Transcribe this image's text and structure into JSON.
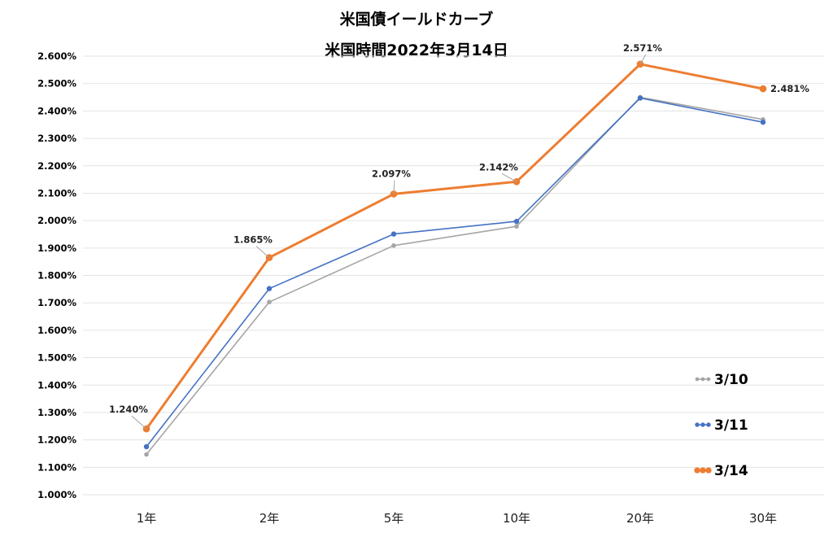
{
  "chart_data": {
    "type": "line",
    "title": "米国債イールドカーブ",
    "subtitle": "米国時間2022年3月14日",
    "categories": [
      "1年",
      "2年",
      "5年",
      "10年",
      "20年",
      "30年"
    ],
    "ylim": [
      1.0,
      2.6
    ],
    "yticks": [
      "1.000%",
      "1.100%",
      "1.200%",
      "1.300%",
      "1.400%",
      "1.500%",
      "1.600%",
      "1.700%",
      "1.800%",
      "1.900%",
      "2.000%",
      "2.100%",
      "2.200%",
      "2.300%",
      "2.400%",
      "2.500%",
      "2.600%"
    ],
    "grid": true,
    "legend_position": "bottom-right",
    "series": [
      {
        "name": "3/10",
        "color": "#a5a5a5",
        "values": [
          1.147,
          1.703,
          1.909,
          1.979,
          2.45,
          2.369
        ]
      },
      {
        "name": "3/11",
        "color": "#4472c4",
        "values": [
          1.175,
          1.752,
          1.951,
          1.997,
          2.447,
          2.359
        ]
      },
      {
        "name": "3/14",
        "color": "#ed7d31",
        "values": [
          1.24,
          1.865,
          2.097,
          2.142,
          2.571,
          2.481
        ],
        "data_labels": [
          "1.240%",
          "1.865%",
          "2.097%",
          "2.142%",
          "2.571%",
          "2.481%"
        ]
      }
    ]
  }
}
